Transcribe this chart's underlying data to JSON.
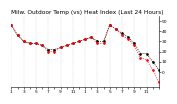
{
  "title": "Milw. Outdoor Temp (vs) Heat Index (Last 24 Hours)",
  "background_color": "#ffffff",
  "temp_color": "#000000",
  "heat_color": "#ff0000",
  "ylim": [
    -15,
    55
  ],
  "xlim": [
    0,
    24
  ],
  "temp_x": [
    0,
    1,
    2,
    3,
    4,
    5,
    6,
    7,
    8,
    9,
    10,
    11,
    12,
    13,
    14,
    15,
    16,
    17,
    18,
    19,
    20,
    21,
    22,
    23,
    24
  ],
  "temp_y": [
    46,
    36,
    30,
    28,
    28,
    26,
    22,
    22,
    24,
    26,
    28,
    30,
    32,
    34,
    30,
    30,
    46,
    42,
    38,
    34,
    28,
    18,
    18,
    10,
    2
  ],
  "heat_x": [
    0,
    1,
    2,
    3,
    4,
    5,
    6,
    7,
    8,
    9,
    10,
    11,
    12,
    13,
    14,
    15,
    16,
    17,
    18,
    19,
    20,
    21,
    22,
    23,
    24
  ],
  "heat_y": [
    46,
    36,
    30,
    28,
    28,
    26,
    20,
    20,
    24,
    26,
    28,
    30,
    32,
    34,
    28,
    28,
    46,
    42,
    36,
    32,
    26,
    14,
    12,
    2,
    -10
  ],
  "y_ticks": [
    0,
    10,
    20,
    30,
    40,
    50
  ],
  "y_tick_labels": [
    "0",
    "10",
    "20",
    "30",
    "40",
    "50"
  ],
  "x_tick_positions": [
    0,
    1,
    2,
    3,
    4,
    5,
    6,
    7,
    8,
    9,
    10,
    11,
    12,
    13,
    14,
    15,
    16,
    17,
    18,
    19,
    20,
    21,
    22,
    23,
    24
  ],
  "x_tick_labels": [
    "1",
    "",
    "3",
    "",
    "5",
    "",
    "7",
    "",
    "9",
    "",
    "11",
    "",
    "1",
    "",
    "3",
    "",
    "5",
    "",
    "7",
    "",
    "9",
    "",
    "11",
    "",
    ""
  ],
  "grid_x": [
    0,
    2,
    4,
    6,
    8,
    10,
    12,
    14,
    16,
    18,
    20,
    22,
    24
  ],
  "title_fontsize": 4.2,
  "tick_fontsize": 3.2
}
